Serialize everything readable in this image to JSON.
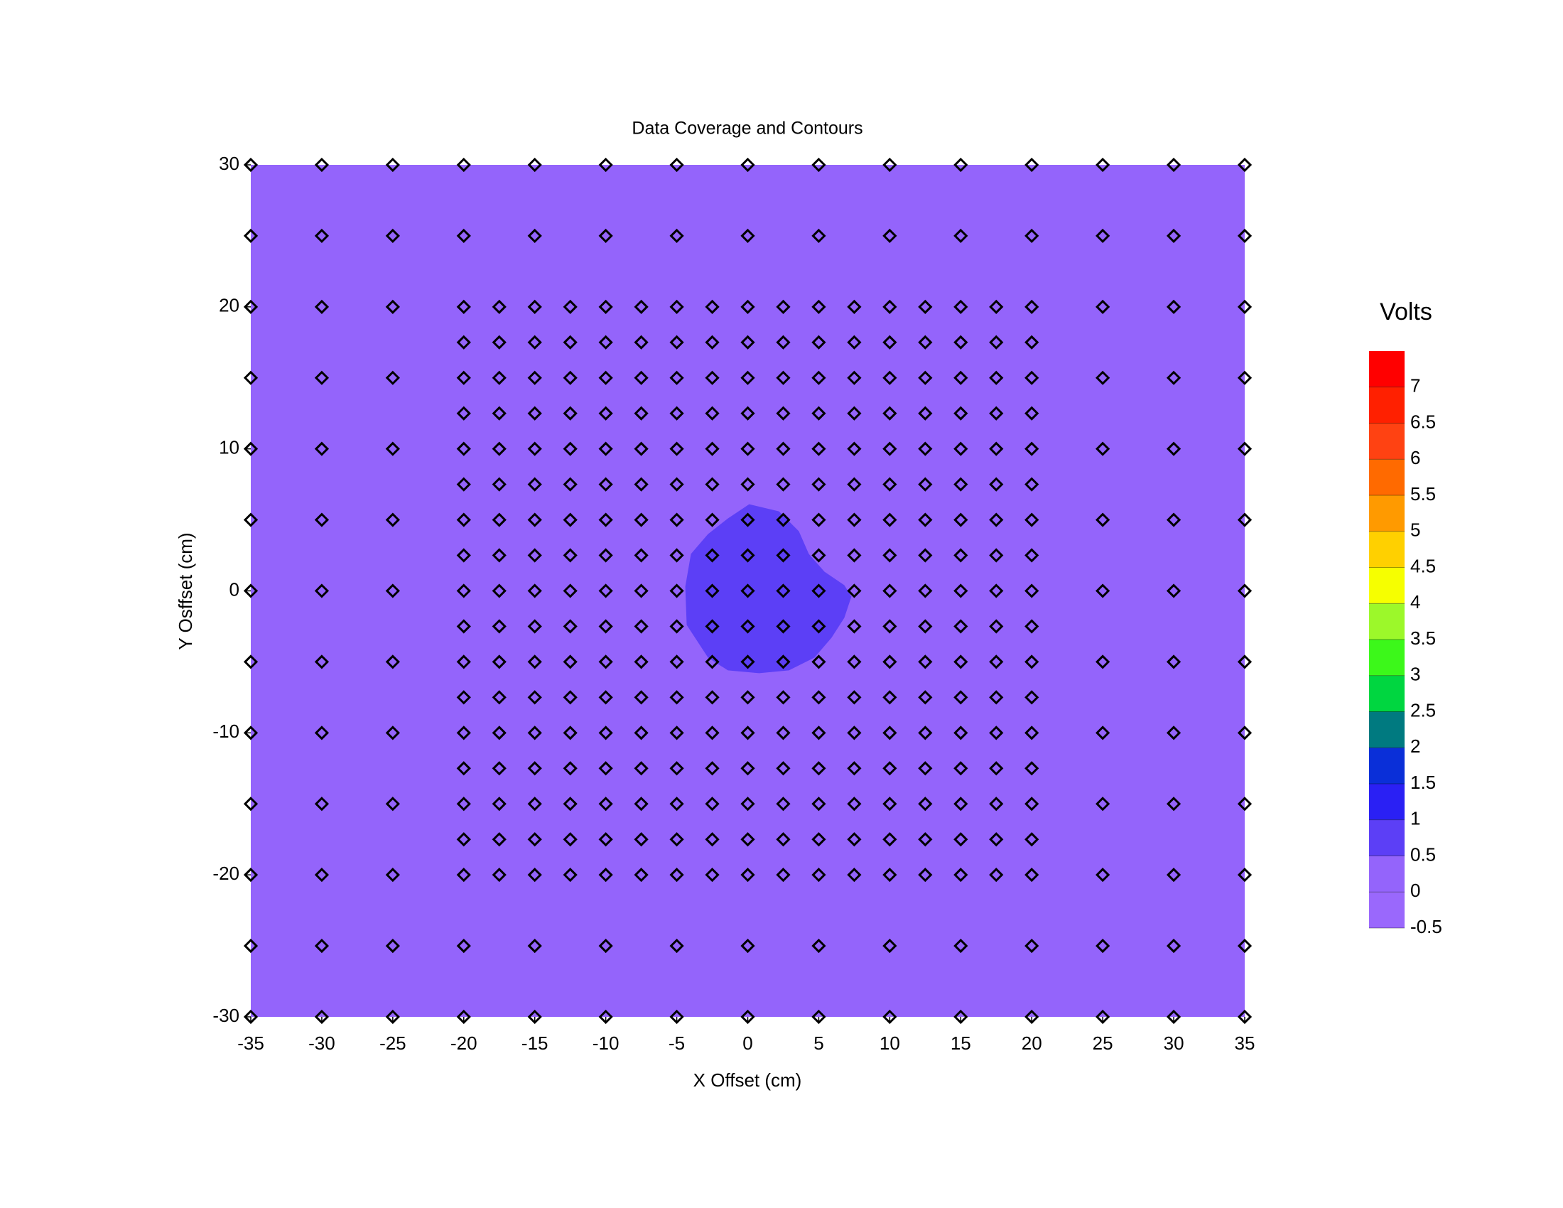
{
  "chart_data": {
    "type": "contour",
    "title": "Data Coverage and Contours",
    "x_label": "X Offset (cm)",
    "y_label": "Y Osffset (cm)",
    "xlim": [
      -35,
      35
    ],
    "ylim": [
      -30,
      30
    ],
    "xticks": [
      -35,
      -30,
      -25,
      -20,
      -15,
      -10,
      -5,
      0,
      5,
      10,
      15,
      20,
      25,
      30,
      35
    ],
    "yticks": [
      -30,
      -20,
      -10,
      0,
      10,
      20,
      30
    ],
    "colorbar": {
      "title": "Volts",
      "lim": [
        -0.5,
        7.5
      ],
      "ticks": [
        -0.5,
        0,
        0.5,
        1,
        1.5,
        2,
        2.5,
        3,
        3.5,
        4,
        4.5,
        5,
        5.5,
        6,
        6.5,
        7
      ],
      "colors": [
        "#9a68fc",
        "#9464fb",
        "#5c3ff6",
        "#2a20f4",
        "#0a2fd8",
        "#007a80",
        "#00d640",
        "#3cf81a",
        "#9cf82a",
        "#f6ff00",
        "#ffd000",
        "#ff9a00",
        "#ff6a00",
        "#ff4212",
        "#ff2000",
        "#ff0000"
      ]
    },
    "regions": [
      {
        "band": 1
      },
      {
        "band": 2,
        "x": [
          0.1,
          2.2,
          3.6,
          4.3,
          5.4,
          6.8,
          7.3,
          6.8,
          5.9,
          4.7,
          2.9,
          0.8,
          -1.4,
          -2.8,
          -4.3,
          -4.4,
          -4.0,
          -2.8,
          -1.4
        ],
        "y": [
          6.1,
          5.6,
          4.2,
          2.6,
          1.35,
          0.4,
          -0.4,
          -1.9,
          -3.3,
          -4.7,
          -5.6,
          -5.8,
          -5.6,
          -4.7,
          -2.4,
          0.3,
          2.6,
          4.0,
          5.1
        ]
      }
    ],
    "sample_rows": [
      {
        "y": 30,
        "x": [
          -35,
          -30,
          -25,
          -20,
          -15,
          -10,
          -5,
          0,
          5,
          10,
          15,
          20,
          25,
          30,
          35
        ]
      },
      {
        "y": 25,
        "x": [
          -35,
          -30,
          -25,
          -20,
          -15,
          -10,
          -5,
          0,
          5,
          10,
          15,
          20,
          25,
          30,
          35
        ]
      },
      {
        "y": 20,
        "x": [
          -35,
          -30,
          -25,
          -20,
          -17.5,
          -15,
          -12.5,
          -10,
          -7.5,
          -5,
          -2.5,
          0,
          2.5,
          5,
          7.5,
          10,
          12.5,
          15,
          17.5,
          20,
          25,
          30,
          35
        ]
      },
      {
        "y": 17.5,
        "x": [
          -20,
          -17.5,
          -15,
          -12.5,
          -10,
          -7.5,
          -5,
          -2.5,
          0,
          2.5,
          5,
          7.5,
          10,
          12.5,
          15,
          17.5,
          20
        ]
      },
      {
        "y": 15,
        "x": [
          -35,
          -30,
          -25,
          -20,
          -17.5,
          -15,
          -12.5,
          -10,
          -7.5,
          -5,
          -2.5,
          0,
          2.5,
          5,
          7.5,
          10,
          12.5,
          15,
          17.5,
          20,
          25,
          30,
          35
        ]
      },
      {
        "y": 12.5,
        "x": [
          -20,
          -17.5,
          -15,
          -12.5,
          -10,
          -7.5,
          -5,
          -2.5,
          0,
          2.5,
          5,
          7.5,
          10,
          12.5,
          15,
          17.5,
          20
        ]
      },
      {
        "y": 10,
        "x": [
          -35,
          -30,
          -25,
          -20,
          -17.5,
          -15,
          -12.5,
          -10,
          -7.5,
          -5,
          -2.5,
          0,
          2.5,
          5,
          7.5,
          10,
          12.5,
          15,
          17.5,
          20,
          25,
          30,
          35
        ]
      },
      {
        "y": 7.5,
        "x": [
          -20,
          -17.5,
          -15,
          -12.5,
          -10,
          -7.5,
          -5,
          -2.5,
          0,
          2.5,
          5,
          7.5,
          10,
          12.5,
          15,
          17.5,
          20
        ]
      },
      {
        "y": 5,
        "x": [
          -35,
          -30,
          -25,
          -20,
          -17.5,
          -15,
          -12.5,
          -10,
          -7.5,
          -5,
          -2.5,
          0,
          2.5,
          5,
          7.5,
          10,
          12.5,
          15,
          17.5,
          20,
          25,
          30,
          35
        ]
      },
      {
        "y": 2.5,
        "x": [
          -20,
          -17.5,
          -15,
          -12.5,
          -10,
          -7.5,
          -5,
          -2.5,
          0,
          2.5,
          5,
          7.5,
          10,
          12.5,
          15,
          17.5,
          20
        ]
      },
      {
        "y": 0,
        "x": [
          -35,
          -30,
          -25,
          -20,
          -17.5,
          -15,
          -12.5,
          -10,
          -7.5,
          -5,
          -2.5,
          0,
          2.5,
          5,
          7.5,
          10,
          12.5,
          15,
          17.5,
          20,
          25,
          30,
          35
        ]
      },
      {
        "y": -2.5,
        "x": [
          -20,
          -17.5,
          -15,
          -12.5,
          -10,
          -7.5,
          -5,
          -2.5,
          0,
          2.5,
          5,
          7.5,
          10,
          12.5,
          15,
          17.5,
          20
        ]
      },
      {
        "y": -5,
        "x": [
          -35,
          -30,
          -25,
          -20,
          -17.5,
          -15,
          -12.5,
          -10,
          -7.5,
          -5,
          -2.5,
          0,
          2.5,
          5,
          7.5,
          10,
          12.5,
          15,
          17.5,
          20,
          25,
          30,
          35
        ]
      },
      {
        "y": -7.5,
        "x": [
          -20,
          -17.5,
          -15,
          -12.5,
          -10,
          -7.5,
          -5,
          -2.5,
          0,
          2.5,
          5,
          7.5,
          10,
          12.5,
          15,
          17.5,
          20
        ]
      },
      {
        "y": -10,
        "x": [
          -35,
          -30,
          -25,
          -20,
          -17.5,
          -15,
          -12.5,
          -10,
          -7.5,
          -5,
          -2.5,
          0,
          2.5,
          5,
          7.5,
          10,
          12.5,
          15,
          17.5,
          20,
          25,
          30,
          35
        ]
      },
      {
        "y": -12.5,
        "x": [
          -20,
          -17.5,
          -15,
          -12.5,
          -10,
          -7.5,
          -5,
          -2.5,
          0,
          2.5,
          5,
          7.5,
          10,
          12.5,
          15,
          17.5,
          20
        ]
      },
      {
        "y": -15,
        "x": [
          -35,
          -30,
          -25,
          -20,
          -17.5,
          -15,
          -12.5,
          -10,
          -7.5,
          -5,
          -2.5,
          0,
          2.5,
          5,
          7.5,
          10,
          12.5,
          15,
          17.5,
          20,
          25,
          30,
          35
        ]
      },
      {
        "y": -17.5,
        "x": [
          -20,
          -17.5,
          -15,
          -12.5,
          -10,
          -7.5,
          -5,
          -2.5,
          0,
          2.5,
          5,
          7.5,
          10,
          12.5,
          15,
          17.5,
          20
        ]
      },
      {
        "y": -20,
        "x": [
          -35,
          -30,
          -25,
          -20,
          -17.5,
          -15,
          -12.5,
          -10,
          -7.5,
          -5,
          -2.5,
          0,
          2.5,
          5,
          7.5,
          10,
          12.5,
          15,
          17.5,
          20,
          25,
          30,
          35
        ]
      },
      {
        "y": -25,
        "x": [
          -35,
          -30,
          -25,
          -20,
          -15,
          -10,
          -5,
          0,
          5,
          10,
          15,
          20,
          25,
          30,
          35
        ]
      },
      {
        "y": -30,
        "x": [
          -35,
          -30,
          -25,
          -20,
          -15,
          -10,
          -5,
          0,
          5,
          10,
          15,
          20,
          25,
          30,
          35
        ]
      }
    ]
  }
}
